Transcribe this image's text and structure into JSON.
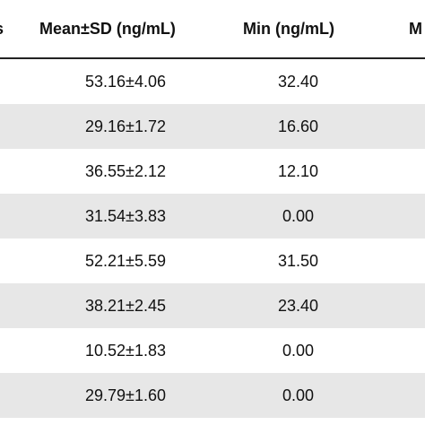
{
  "table": {
    "headers": [
      "s",
      "Mean±SD (ng/mL)",
      "Min (ng/mL)",
      "M"
    ],
    "rows": [
      {
        "mean_sd": "53.16±4.06",
        "min": "32.40"
      },
      {
        "mean_sd": "29.16±1.72",
        "min": "16.60"
      },
      {
        "mean_sd": "36.55±2.12",
        "min": "12.10"
      },
      {
        "mean_sd": "31.54±3.83",
        "min": "0.00"
      },
      {
        "mean_sd": "52.21±5.59",
        "min": "31.50"
      },
      {
        "mean_sd": "38.21±2.45",
        "min": "23.40"
      },
      {
        "mean_sd": "10.52±1.83",
        "min": "0.00"
      },
      {
        "mean_sd": "29.79±1.60",
        "min": "0.00"
      }
    ]
  }
}
